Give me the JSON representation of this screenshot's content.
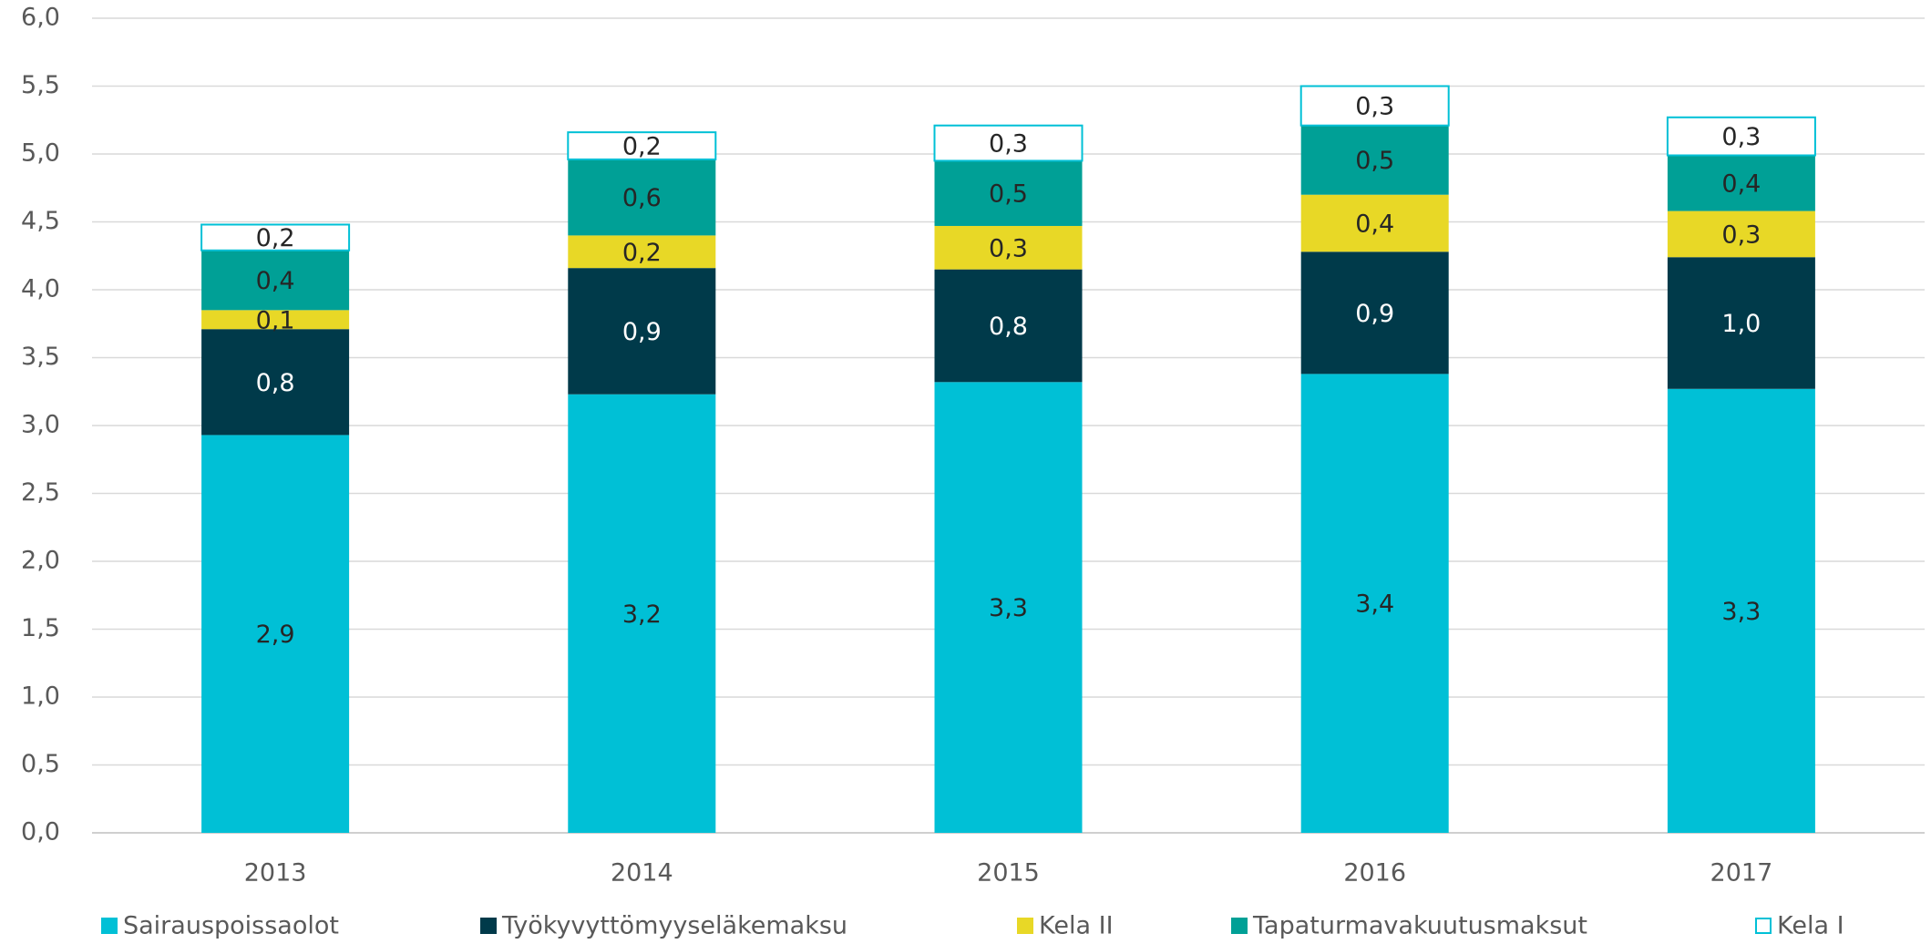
{
  "chart_data": {
    "type": "stacked_bar",
    "categories": [
      "2013",
      "2014",
      "2015",
      "2016",
      "2017"
    ],
    "series": [
      {
        "name": "Sairauspoissaolot",
        "color": "#00c0d6",
        "values": [
          2.93,
          3.23,
          3.32,
          3.38,
          3.27
        ],
        "value_labels": [
          "2,9",
          "3,2",
          "3,3",
          "3,4",
          "3,3"
        ]
      },
      {
        "name": "Työkyvyttömyyseläkemaksu",
        "color": "#003a4a",
        "values": [
          0.78,
          0.93,
          0.83,
          0.9,
          0.97
        ],
        "value_labels": [
          "0,8",
          "0,9",
          "0,8",
          "0,9",
          "1,0"
        ]
      },
      {
        "name": "Kela II",
        "color": "#e8d826",
        "values": [
          0.14,
          0.24,
          0.32,
          0.42,
          0.34
        ],
        "value_labels": [
          "0,1",
          "0,2",
          "0,3",
          "0,4",
          "0,3"
        ]
      },
      {
        "name": "Tapaturmavakuutusmaksut",
        "color": "#00a096",
        "values": [
          0.44,
          0.56,
          0.48,
          0.51,
          0.41
        ],
        "value_labels": [
          "0,4",
          "0,6",
          "0,5",
          "0,5",
          "0,4"
        ]
      },
      {
        "name": "Kela I",
        "color": "#ffffff",
        "edgecolor": "#00c0d6",
        "values": [
          0.19,
          0.2,
          0.26,
          0.29,
          0.28
        ],
        "value_labels": [
          "0,2",
          "0,2",
          "0,3",
          "0,3",
          "0,3"
        ]
      }
    ],
    "ylim": [
      0,
      6
    ],
    "yticks": [
      {
        "value": 0,
        "label": "0,0"
      },
      {
        "value": 0.5,
        "label": "0,5"
      },
      {
        "value": 1,
        "label": "1,0"
      },
      {
        "value": 1.5,
        "label": "1,5"
      },
      {
        "value": 2,
        "label": "2,0"
      },
      {
        "value": 2.5,
        "label": "2,5"
      },
      {
        "value": 3,
        "label": "3,0"
      },
      {
        "value": 3.5,
        "label": "3,5"
      },
      {
        "value": 4,
        "label": "4,0"
      },
      {
        "value": 4.5,
        "label": "4,5"
      },
      {
        "value": 5,
        "label": "5,0"
      },
      {
        "value": 5.5,
        "label": "5,5"
      },
      {
        "value": 6,
        "label": "6,0"
      }
    ],
    "grid": true,
    "legend": "bottom"
  }
}
